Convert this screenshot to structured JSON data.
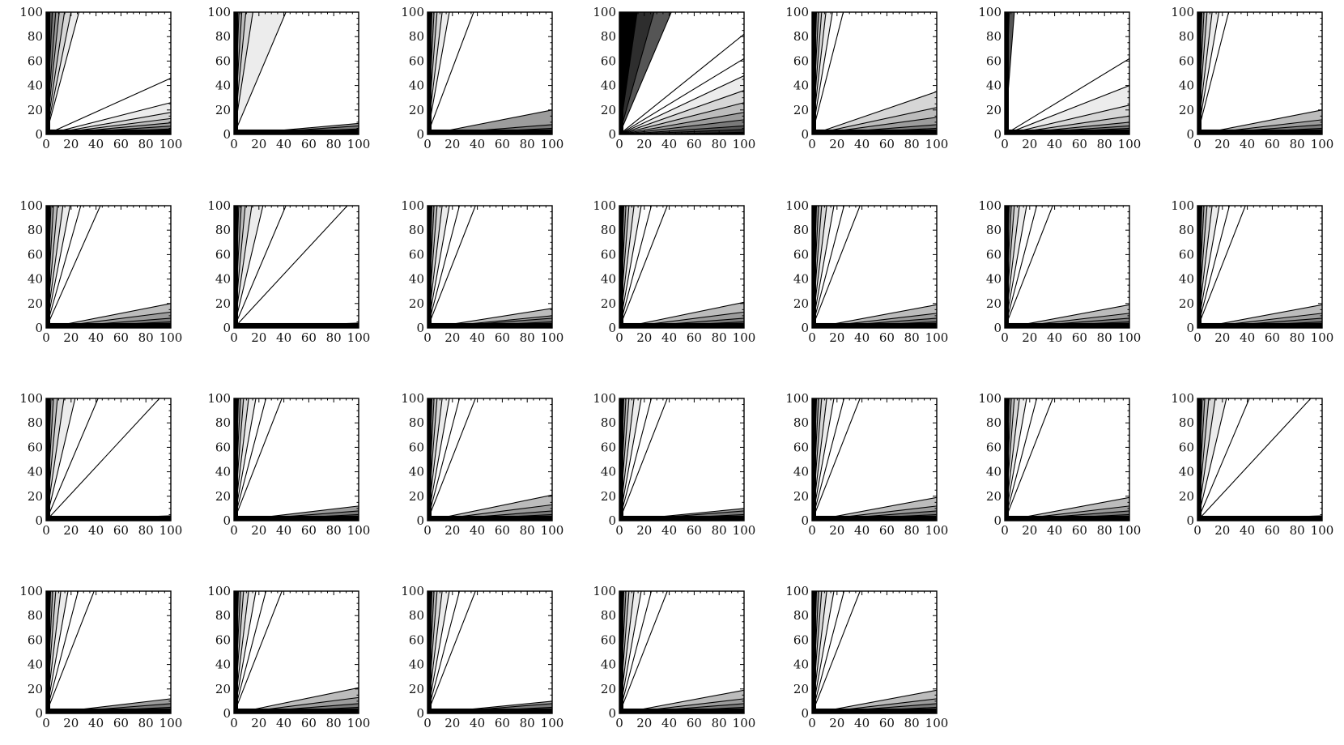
{
  "chart_data": {
    "type": "contour",
    "layout": {
      "rows": 4,
      "cols": 7
    },
    "x_axis": {
      "range": [
        0,
        100
      ],
      "ticks": [
        0,
        20,
        40,
        60,
        80,
        100
      ],
      "tick_labels": [
        "0",
        "20",
        "40",
        "60",
        "80",
        "100"
      ]
    },
    "y_axis": {
      "range": [
        0,
        100
      ],
      "ticks": [
        0,
        20,
        40,
        60,
        80,
        100
      ],
      "tick_labels": [
        "0",
        "20",
        "40",
        "60",
        "80",
        "100"
      ]
    },
    "grid": false,
    "fill_colors": [
      "#000000",
      "#2e2e2e",
      "#555555",
      "#7a7a7a",
      "#9c9c9c",
      "#bcbcbc",
      "#d6d6d6",
      "#ececec",
      "#ffffff"
    ],
    "panels": [
      {
        "upper_slopes": [
          60,
          34,
          20,
          13,
          9.5,
          6.8,
          5,
          3.8
        ],
        "lower_slopes": [
          0.028,
          0.045,
          0.068,
          0.095,
          0.13,
          0.18,
          0.26,
          0.46
        ],
        "bottom_band": 4
      },
      {
        "upper_slopes": [
          95,
          60,
          38,
          25,
          16,
          10.5,
          6.6,
          2.4
        ],
        "lower_slopes": [
          0.03,
          0.045,
          0.07,
          0.09
        ],
        "bottom_band": 4
      },
      {
        "upper_slopes": [
          95,
          62,
          42,
          28,
          19,
          13,
          8.5,
          5.7,
          2.7
        ],
        "lower_slopes": [
          0.03,
          0.05,
          0.08,
          0.2
        ],
        "bottom_band": 4
      },
      {
        "upper_slopes": [
          7,
          3.6,
          2.4
        ],
        "lower_slopes": [
          0.04,
          0.07,
          0.12,
          0.18,
          0.26,
          0.36,
          0.48,
          0.62,
          0.82
        ],
        "bottom_band": 0
      },
      {
        "upper_slopes": [
          95,
          60,
          40,
          28,
          19,
          13,
          9,
          6.1,
          4
        ],
        "lower_slopes": [
          0.03,
          0.05,
          0.08,
          0.14,
          0.22,
          0.35
        ],
        "bottom_band": 4
      },
      {
        "upper_slopes": [
          200,
          28,
          13
        ],
        "lower_slopes": [
          0.03,
          0.05,
          0.07,
          0.1,
          0.15,
          0.24,
          0.4,
          0.62
        ],
        "bottom_band": 4
      },
      {
        "upper_slopes": [
          95,
          62,
          42,
          28,
          19,
          13,
          8.5,
          5.8,
          4
        ],
        "lower_slopes": [
          0.03,
          0.05,
          0.08,
          0.12,
          0.2
        ],
        "bottom_band": 4
      },
      {
        "upper_slopes": [
          95,
          60,
          40,
          26,
          17,
          11,
          7.4,
          5.2,
          3.6,
          2.3
        ],
        "lower_slopes": [
          0.03,
          0.05,
          0.08,
          0.13,
          0.2
        ],
        "bottom_band": 4
      },
      {
        "upper_slopes": [
          95,
          62,
          40,
          26,
          17,
          11,
          7,
          4.3,
          2.4,
          1.1
        ],
        "lower_slopes": [
          0.04
        ],
        "bottom_band": 4
      },
      {
        "upper_slopes": [
          95,
          62,
          42,
          28,
          19,
          13,
          8.5,
          5.7,
          3.9,
          2.6
        ],
        "lower_slopes": [
          0.03,
          0.05,
          0.08,
          0.1,
          0.16
        ],
        "bottom_band": 4
      },
      {
        "upper_slopes": [
          95,
          62,
          42,
          28,
          19,
          13,
          8.5,
          5.7,
          3.9,
          2.6
        ],
        "lower_slopes": [
          0.03,
          0.05,
          0.08,
          0.13,
          0.21
        ],
        "bottom_band": 4
      },
      {
        "upper_slopes": [
          95,
          62,
          42,
          28,
          19,
          13,
          8.5,
          5.7,
          3.9,
          2.6
        ],
        "lower_slopes": [
          0.03,
          0.05,
          0.08,
          0.12,
          0.19
        ],
        "bottom_band": 4
      },
      {
        "upper_slopes": [
          95,
          62,
          42,
          28,
          19,
          13,
          8.5,
          5.7,
          3.9,
          2.6
        ],
        "lower_slopes": [
          0.03,
          0.05,
          0.08,
          0.12,
          0.19
        ],
        "bottom_band": 4
      },
      {
        "upper_slopes": [
          95,
          62,
          42,
          28,
          19,
          13,
          8.5,
          5.7,
          3.9,
          2.6
        ],
        "lower_slopes": [
          0.03,
          0.05,
          0.08,
          0.12,
          0.19
        ],
        "bottom_band": 4
      },
      {
        "upper_slopes": [
          95,
          60,
          40,
          26,
          17,
          11,
          7,
          4.3,
          2.4,
          1.1
        ],
        "lower_slopes": [
          0.04
        ],
        "bottom_band": 4
      },
      {
        "upper_slopes": [
          95,
          62,
          42,
          28,
          19,
          13,
          8.5,
          5.7,
          3.9,
          2.6
        ],
        "lower_slopes": [
          0.03,
          0.05,
          0.08,
          0.12
        ],
        "bottom_band": 4
      },
      {
        "upper_slopes": [
          95,
          62,
          42,
          28,
          19,
          13,
          8.5,
          5.7,
          3.9,
          2.6
        ],
        "lower_slopes": [
          0.03,
          0.05,
          0.08,
          0.13,
          0.21
        ],
        "bottom_band": 4
      },
      {
        "upper_slopes": [
          95,
          62,
          42,
          28,
          19,
          13,
          8.5,
          5.7,
          3.9,
          2.6
        ],
        "lower_slopes": [
          0.03,
          0.05,
          0.08,
          0.1
        ],
        "bottom_band": 4
      },
      {
        "upper_slopes": [
          95,
          62,
          42,
          28,
          19,
          13,
          8.5,
          5.7,
          3.9,
          2.6
        ],
        "lower_slopes": [
          0.03,
          0.05,
          0.08,
          0.12,
          0.19
        ],
        "bottom_band": 4
      },
      {
        "upper_slopes": [
          95,
          62,
          42,
          28,
          19,
          13,
          8.5,
          5.7,
          3.9,
          2.6
        ],
        "lower_slopes": [
          0.03,
          0.05,
          0.08,
          0.12,
          0.19
        ],
        "bottom_band": 4
      },
      {
        "upper_slopes": [
          95,
          60,
          40,
          26,
          17,
          11,
          7,
          4.3,
          2.4,
          1.1
        ],
        "lower_slopes": [
          0.04
        ],
        "bottom_band": 4
      },
      {
        "upper_slopes": [
          95,
          62,
          42,
          28,
          19,
          13,
          8.5,
          5.7,
          3.9,
          2.6
        ],
        "lower_slopes": [
          0.03,
          0.05,
          0.08,
          0.12
        ],
        "bottom_band": 4
      },
      {
        "upper_slopes": [
          95,
          62,
          42,
          28,
          19,
          13,
          8.5,
          5.7,
          3.9,
          2.6
        ],
        "lower_slopes": [
          0.03,
          0.05,
          0.08,
          0.13,
          0.21
        ],
        "bottom_band": 4
      },
      {
        "upper_slopes": [
          95,
          62,
          42,
          28,
          19,
          13,
          8.5,
          5.7,
          3.9,
          2.6
        ],
        "lower_slopes": [
          0.03,
          0.05,
          0.08,
          0.1
        ],
        "bottom_band": 4
      },
      {
        "upper_slopes": [
          95,
          62,
          42,
          28,
          19,
          13,
          8.5,
          5.7,
          3.9,
          2.6
        ],
        "lower_slopes": [
          0.03,
          0.05,
          0.08,
          0.12,
          0.19
        ],
        "bottom_band": 4
      },
      {
        "upper_slopes": [
          95,
          62,
          42,
          28,
          19,
          13,
          8.5,
          5.7,
          3.9,
          2.6
        ],
        "lower_slopes": [
          0.03,
          0.05,
          0.08,
          0.12,
          0.19
        ],
        "bottom_band": 4
      }
    ]
  }
}
